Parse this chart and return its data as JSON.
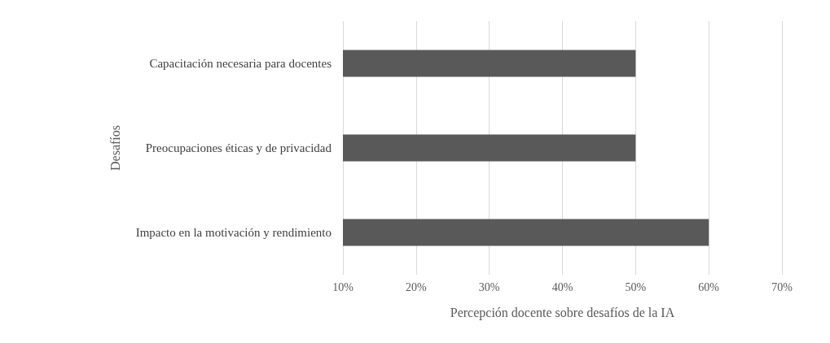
{
  "chart_data": {
    "type": "bar",
    "orientation": "horizontal",
    "xlabel": "Percepción docente sobre desafíos de la IA",
    "ylabel": "Desafíos",
    "categories": [
      "Capacitación necesaria para docentes",
      "Preocupaciones éticas y de privacidad",
      "Impacto en la motivación y rendimiento"
    ],
    "values": [
      50,
      50,
      60
    ],
    "color": "#595959",
    "xlim": [
      10,
      70
    ],
    "xticks": [
      {
        "value": 10,
        "label": "10%"
      },
      {
        "value": 20,
        "label": "20%"
      },
      {
        "value": 30,
        "label": "30%"
      },
      {
        "value": 40,
        "label": "40%"
      },
      {
        "value": 50,
        "label": "50%"
      },
      {
        "value": 60,
        "label": "60%"
      },
      {
        "value": 70,
        "label": "70%"
      }
    ],
    "grid": "x"
  }
}
